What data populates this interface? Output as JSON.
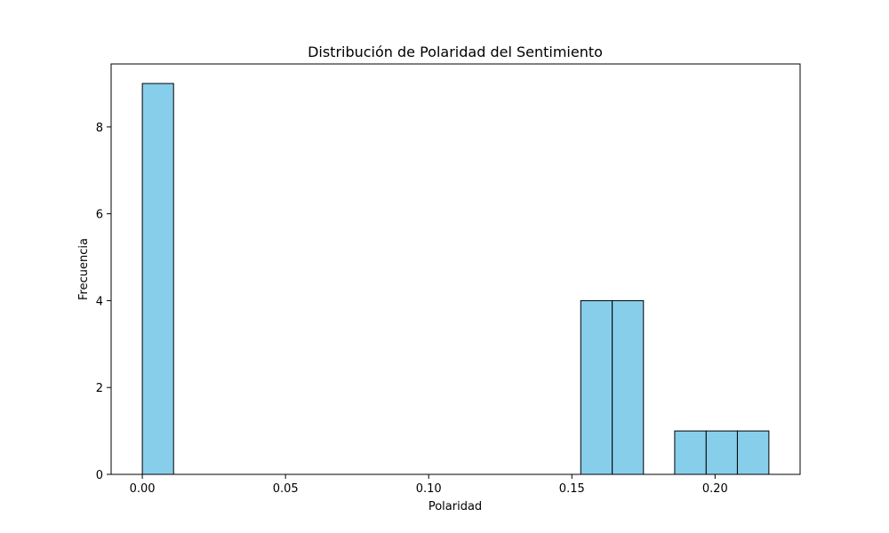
{
  "chart_data": {
    "type": "bar",
    "title": "Distribución de Polaridad del Sentimiento",
    "xlabel": "Polaridad",
    "ylabel": "Frecuencia",
    "bins": [
      {
        "start": 0.0,
        "end": 0.0109,
        "count": 9
      },
      {
        "start": 0.0109,
        "end": 0.0219,
        "count": 0
      },
      {
        "start": 0.0219,
        "end": 0.0328,
        "count": 0
      },
      {
        "start": 0.0328,
        "end": 0.0438,
        "count": 0
      },
      {
        "start": 0.0438,
        "end": 0.0547,
        "count": 0
      },
      {
        "start": 0.0547,
        "end": 0.0656,
        "count": 0
      },
      {
        "start": 0.0656,
        "end": 0.0766,
        "count": 0
      },
      {
        "start": 0.0766,
        "end": 0.0875,
        "count": 0
      },
      {
        "start": 0.0875,
        "end": 0.0984,
        "count": 0
      },
      {
        "start": 0.0984,
        "end": 0.1094,
        "count": 0
      },
      {
        "start": 0.1094,
        "end": 0.1203,
        "count": 0
      },
      {
        "start": 0.1203,
        "end": 0.1313,
        "count": 0
      },
      {
        "start": 0.1313,
        "end": 0.1422,
        "count": 0
      },
      {
        "start": 0.1422,
        "end": 0.1531,
        "count": 0
      },
      {
        "start": 0.1531,
        "end": 0.1641,
        "count": 4
      },
      {
        "start": 0.1641,
        "end": 0.175,
        "count": 4
      },
      {
        "start": 0.175,
        "end": 0.1859,
        "count": 0
      },
      {
        "start": 0.1859,
        "end": 0.1969,
        "count": 1
      },
      {
        "start": 0.1969,
        "end": 0.2078,
        "count": 1
      },
      {
        "start": 0.2078,
        "end": 0.2188,
        "count": 1
      }
    ],
    "xlim": [
      -0.0109,
      0.2297
    ],
    "ylim": [
      0,
      9.45
    ],
    "xticks": [
      {
        "value": 0.0,
        "label": "0.00"
      },
      {
        "value": 0.05,
        "label": "0.05"
      },
      {
        "value": 0.1,
        "label": "0.10"
      },
      {
        "value": 0.15,
        "label": "0.15"
      },
      {
        "value": 0.2,
        "label": "0.20"
      }
    ],
    "yticks": [
      {
        "value": 0,
        "label": "0"
      },
      {
        "value": 2,
        "label": "2"
      },
      {
        "value": 4,
        "label": "4"
      },
      {
        "value": 6,
        "label": "6"
      },
      {
        "value": 8,
        "label": "8"
      }
    ],
    "grid": false,
    "bar_color": "#87ceeb",
    "edge_color": "#000000"
  }
}
